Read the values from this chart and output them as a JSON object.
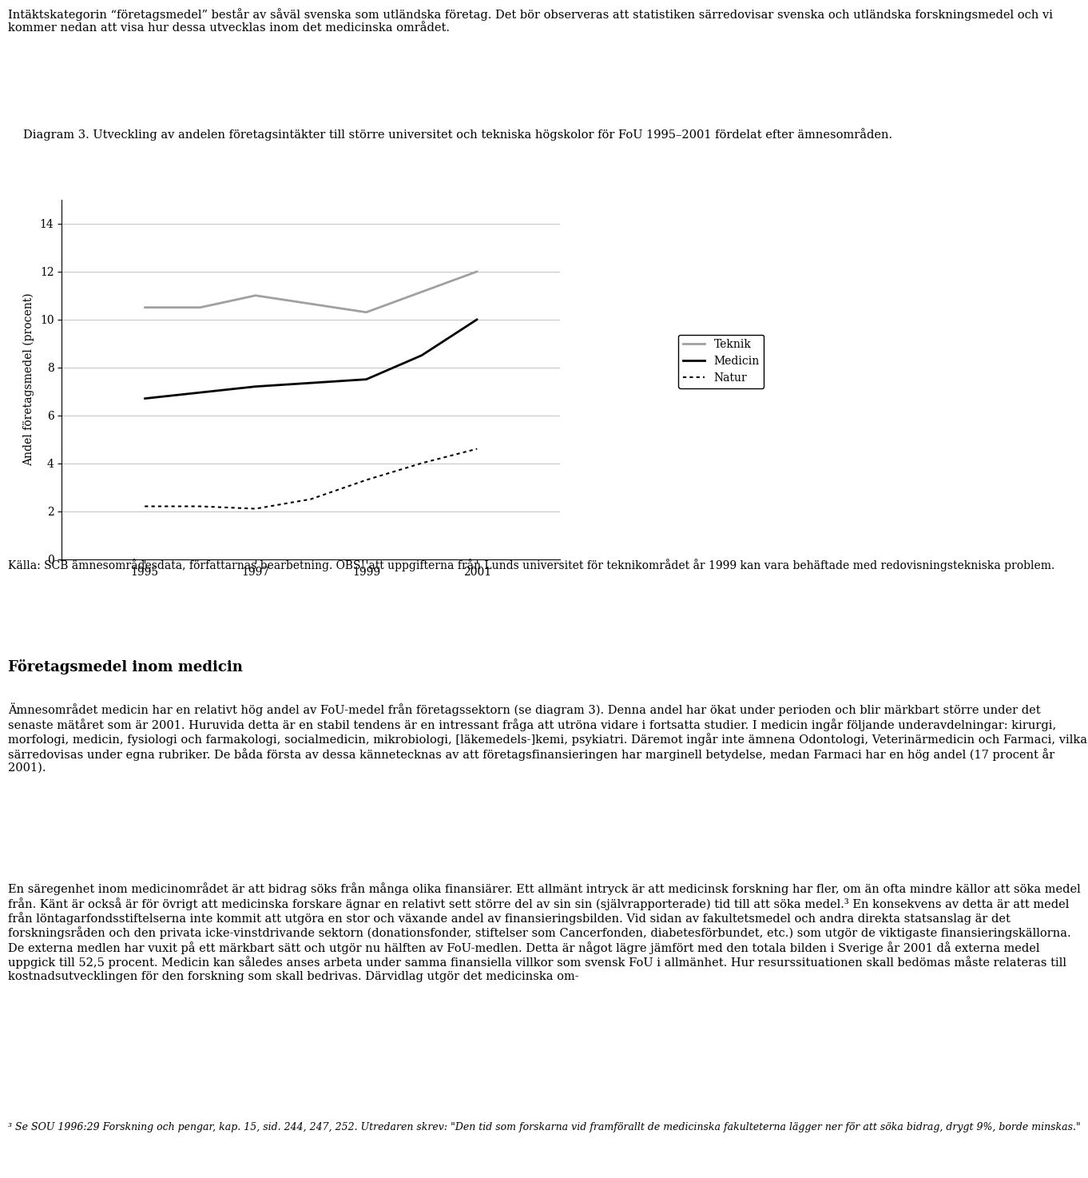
{
  "teknik_x": [
    1995,
    1996,
    1997,
    1999,
    2001
  ],
  "teknik_y": [
    10.5,
    10.5,
    11.0,
    10.3,
    12.0
  ],
  "medicin_x": [
    1995,
    1997,
    1999,
    2000,
    2001
  ],
  "medicin_y": [
    6.7,
    7.2,
    7.5,
    8.5,
    10.0
  ],
  "natur_x": [
    1995,
    1996,
    1997,
    1998,
    1999,
    2000,
    2001
  ],
  "natur_y": [
    2.2,
    2.2,
    2.1,
    2.5,
    3.3,
    4.0,
    4.6
  ],
  "teknik_color": "#a0a0a0",
  "medicin_color": "#000000",
  "natur_color": "#000000",
  "ylabel": "Andel företagsmedel (procent)",
  "ylim": [
    0,
    15
  ],
  "yticks": [
    0,
    2,
    4,
    6,
    8,
    10,
    12,
    14
  ],
  "xticks": [
    1995,
    1997,
    1999,
    2001
  ],
  "legend_labels": [
    "Teknik",
    "Medicin",
    "Natur"
  ],
  "header_text": "Intäktskategorin “företagsmedel” består av såväl svenska som utländska företag. Det bör observeras att statistiken särredovisar svenska och utländska forskningsmedel och vi kommer nedan att visa hur dessa utvecklas inom det medicinska området.",
  "diagram_caption": "Diagram 3. Utveckling av andelen företagsintäkter till större universitet och tekniska högskolor för FoU 1995–2001 fördelat efter ämnesområden.",
  "source_text": "Källa: SCB ämnesområdesdata, författarnas bearbetning. OBS! att uppgifterna från Lunds universitet för teknikområdet år 1999 kan vara behäftade med redovisningstekniska problem.",
  "section_title": "Företagsmedel inom medicin",
  "body_text1": "Ämnesområdet medicin har en relativt hög andel av FoU-medel från företagssektorn (se diagram 3). Denna andel har ökat under perioden och blir märkbart större under det senaste mätåret som är 2001. Huruvida detta är en stabil tendens är en intressant fråga att utröna vidare i fortsatta studier. I medicin ingår följande underavdelningar: kirurgi, morfologi, medicin, fysiologi och farmakologi, socialmedicin, mikrobiologi, [läkemedels-]kemi, psykiatri. Däremot ingår inte ämnena Odontologi, Veterinärmedicin och Farmaci, vilka särredovisas under egna rubriker. De båda första av dessa kännetecknas av att företagsfinansieringen har marginell betydelse, medan Farmaci har en hög andel (17 procent år 2001).",
  "body_text2": "En säregenhet inom medicinområdet är att bidrag söks från många olika finansiärer. Ett allmänt intryck är att medicinsk forskning har fler, om än ofta mindre källor att söka medel från. Känt är också är för övrigt att medicinska forskare ägnar en relativt sett större del av sin sin (självrapporterade) tid till att söka medel.³ En konsekvens av detta är att medel från löntagarfondsstiftelserna inte kommit att utgöra en stor och växande andel av finansieringsbilden. Vid sidan av fakultetsmedel och andra direkta statsanslag är det forskningsråden och den privata icke-vinstdrivande sektorn (donationsfonder, stiftelser som Cancerfonden, diabetesförbundet, etc.) som utgör de viktigaste finansieringskällorna. De externa medlen har vuxit på ett märkbart sätt och utgör nu hälften av FoU-medlen. Detta är något lägre jämfört med den totala bilden i Sverige år 2001 då externa medel uppgick till 52,5 procent. Medicin kan således anses arbeta under samma finansiella villkor som svensk FoU i allmänhet. Hur resurssituationen skall bedömas måste relateras till kostnadsutvecklingen för den forskning som skall bedrivas. Därvidlag utgör det medicinska om-",
  "footnote": "³ Se SOU 1996:29 Forskning och pengar, kap. 15, sid. 244, 247, 252. Utredaren skrev: \"Den tid som forskarna vid framförallt de medicinska fakulteterna lägger ner för att söka bidrag, drygt 9%, borde minskas.\""
}
